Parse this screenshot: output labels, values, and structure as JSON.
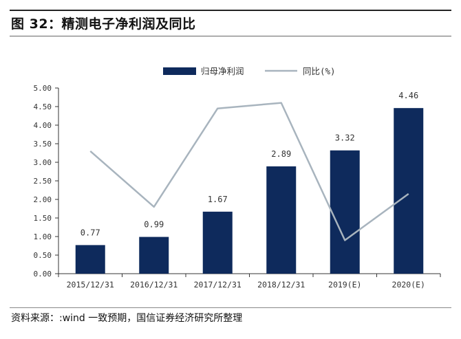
{
  "figure": {
    "title": "图 32：精测电子净利润及同比",
    "source": "资料来源：:wind 一致预期，国信证券经济研究所整理"
  },
  "colors": {
    "bar": "#0e2a5c",
    "line": "#a8b4be",
    "axis": "#333333",
    "text": "#333333"
  },
  "chart_data": {
    "type": "bar",
    "categories": [
      "2015/12/31",
      "2016/12/31",
      "2017/12/31",
      "2018/12/31",
      "2019(E)",
      "2020(E)"
    ],
    "series": [
      {
        "name": "归母净利润",
        "type": "bar",
        "values": [
          0.77,
          0.99,
          1.67,
          2.89,
          3.32,
          4.46
        ],
        "labels": [
          "0.77",
          "0.99",
          "1.67",
          "2.89",
          "3.32",
          "4.46"
        ]
      },
      {
        "name": "同比(%)",
        "type": "line",
        "values": [
          3.3,
          1.8,
          4.45,
          4.6,
          0.9,
          2.15
        ]
      }
    ],
    "ylim": [
      0,
      5
    ],
    "yticks": [
      "5.00",
      "4.50",
      "4.00",
      "3.50",
      "3.00",
      "2.50",
      "2.00",
      "1.50",
      "1.00",
      "0.50",
      "0.00"
    ],
    "legend_position": "top-center",
    "grid": false
  }
}
